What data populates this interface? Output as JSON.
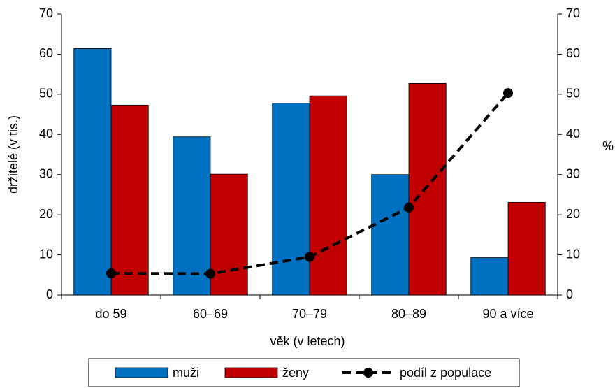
{
  "chart_data": {
    "type": "bar",
    "categories": [
      "do 59",
      "60–69",
      "70–79",
      "80–89",
      "90 a více"
    ],
    "series": [
      {
        "name": "muži",
        "type": "bar",
        "color": "#0070c0",
        "values": [
          61.4,
          39.4,
          47.8,
          30.0,
          9.3
        ]
      },
      {
        "name": "ženy",
        "type": "bar",
        "color": "#c00000",
        "values": [
          47.3,
          30.1,
          49.6,
          52.7,
          23.1
        ]
      },
      {
        "name": "podíl z populace",
        "type": "line",
        "axis": "y2",
        "color": "#000000",
        "values": [
          5.4,
          5.3,
          9.5,
          21.8,
          50.3
        ]
      }
    ],
    "x_label": "věk (v letech)",
    "y_label": "držitelé (v tis.)",
    "y2_label": "%",
    "ylim": [
      0,
      70
    ],
    "yticks": [
      0,
      10,
      20,
      30,
      40,
      50,
      60,
      70
    ],
    "y2lim": [
      0,
      70
    ],
    "y2ticks": [
      0,
      10,
      20,
      30,
      40,
      50,
      60,
      70
    ],
    "grid": false,
    "legend": "bottom"
  }
}
